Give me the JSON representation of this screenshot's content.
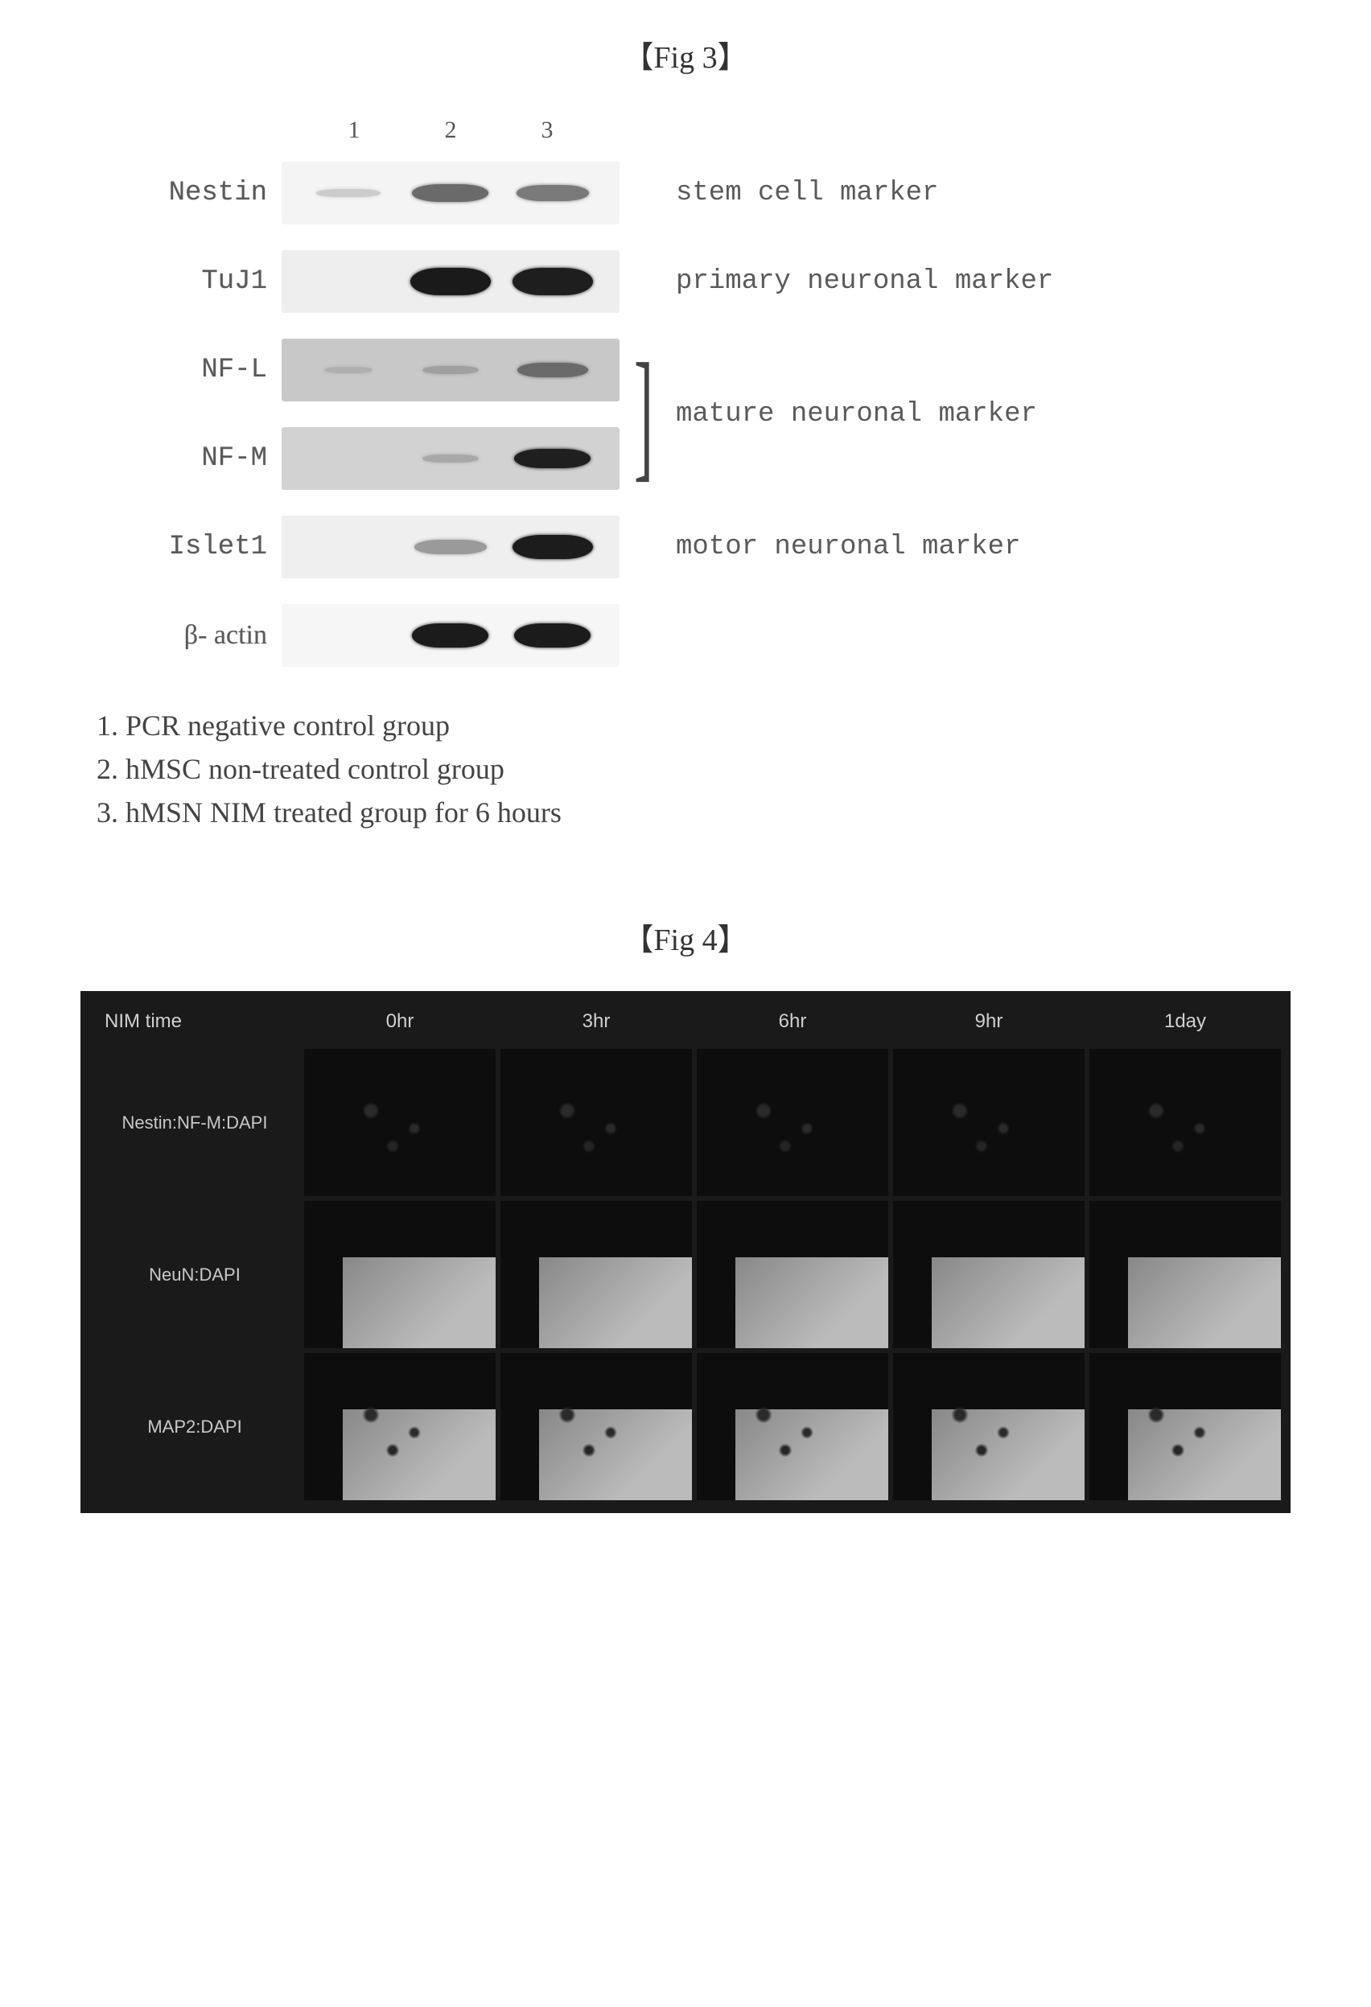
{
  "fig3": {
    "title": "【Fig 3】",
    "lanes": [
      "1",
      "2",
      "3"
    ],
    "rows": [
      {
        "label": "Nestin",
        "marker": "stem cell marker",
        "strip_bg": "#f4f4f4",
        "bands": [
          {
            "intensity": 0.05,
            "width": 80,
            "height": 10,
            "color": "#cccccc"
          },
          {
            "intensity": 0.55,
            "width": 95,
            "height": 22,
            "color": "#6a6a6a"
          },
          {
            "intensity": 0.45,
            "width": 90,
            "height": 20,
            "color": "#7a7a7a"
          }
        ]
      },
      {
        "label": "TuJ1",
        "marker": "primary neuronal marker",
        "strip_bg": "#eeeeee",
        "bands": [
          {
            "intensity": 0.0,
            "width": 0,
            "height": 0,
            "color": "transparent"
          },
          {
            "intensity": 0.95,
            "width": 100,
            "height": 34,
            "color": "#1a1a1a"
          },
          {
            "intensity": 0.92,
            "width": 100,
            "height": 34,
            "color": "#1e1e1e"
          }
        ]
      },
      {
        "label": "NF-L",
        "marker": "",
        "strip_bg": "#c8c8c8",
        "bands": [
          {
            "intensity": 0.05,
            "width": 60,
            "height": 8,
            "color": "#b0b0b0"
          },
          {
            "intensity": 0.1,
            "width": 70,
            "height": 10,
            "color": "#a0a0a0"
          },
          {
            "intensity": 0.4,
            "width": 88,
            "height": 18,
            "color": "#6a6a6a"
          }
        ]
      },
      {
        "label": "NF-M",
        "marker": "",
        "strip_bg": "#d2d2d2",
        "bands": [
          {
            "intensity": 0.0,
            "width": 0,
            "height": 0,
            "color": "transparent"
          },
          {
            "intensity": 0.08,
            "width": 70,
            "height": 10,
            "color": "#a8a8a8"
          },
          {
            "intensity": 0.85,
            "width": 95,
            "height": 24,
            "color": "#1f1f1f"
          }
        ]
      },
      {
        "label": "Islet1",
        "marker": "motor neuronal marker",
        "strip_bg": "#efefef",
        "bands": [
          {
            "intensity": 0.0,
            "width": 0,
            "height": 0,
            "color": "transparent"
          },
          {
            "intensity": 0.3,
            "width": 90,
            "height": 18,
            "color": "#9a9a9a"
          },
          {
            "intensity": 0.9,
            "width": 100,
            "height": 30,
            "color": "#1c1c1c"
          }
        ]
      },
      {
        "label": "β- actin",
        "marker": "",
        "strip_bg": "#f6f6f6",
        "bands": [
          {
            "intensity": 0.0,
            "width": 0,
            "height": 0,
            "color": "transparent"
          },
          {
            "intensity": 0.92,
            "width": 95,
            "height": 30,
            "color": "#1b1b1b"
          },
          {
            "intensity": 0.92,
            "width": 95,
            "height": 30,
            "color": "#1b1b1b"
          }
        ]
      }
    ],
    "mature_bracket": {
      "rows": [
        2,
        3
      ],
      "label": "mature neuronal marker"
    },
    "legend": [
      "1. PCR negative control group",
      "2. hMSC non-treated control group",
      "3. hMSN NIM treated group for 6 hours"
    ]
  },
  "fig4": {
    "title": "【Fig 4】",
    "col_header_label": "NIM time",
    "columns": [
      "0hr",
      "3hr",
      "6hr",
      "9hr",
      "1day"
    ],
    "rows": [
      {
        "label": "Nestin:NF-M:DAPI",
        "style": "dark-blot"
      },
      {
        "label": "NeuN:DAPI",
        "style": "gray-panel"
      },
      {
        "label": "MAP2:DAPI",
        "style": "dark-blot gray-panel"
      }
    ],
    "panel_bg": "#1a1a1a",
    "cell_bg": "#0d0d0d",
    "header_text_color": "#d0d0d0"
  }
}
